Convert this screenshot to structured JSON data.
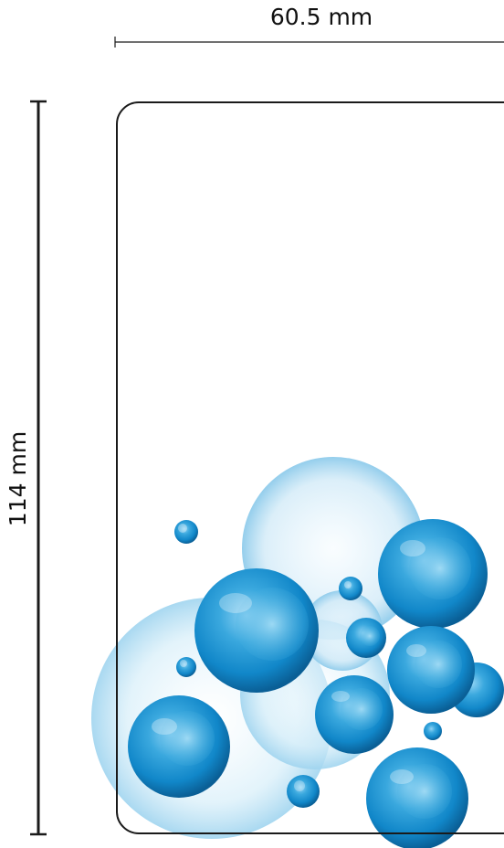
{
  "dimensions": {
    "width_label": "60.5 mm",
    "height_label": "114 mm"
  },
  "colors": {
    "outline": "#1a1a1a",
    "bubble_deep": "#1187c9",
    "bubble_mid": "#3aa8de",
    "bubble_light": "#bfe3f5",
    "bubble_faint": "#e3f3fb"
  }
}
